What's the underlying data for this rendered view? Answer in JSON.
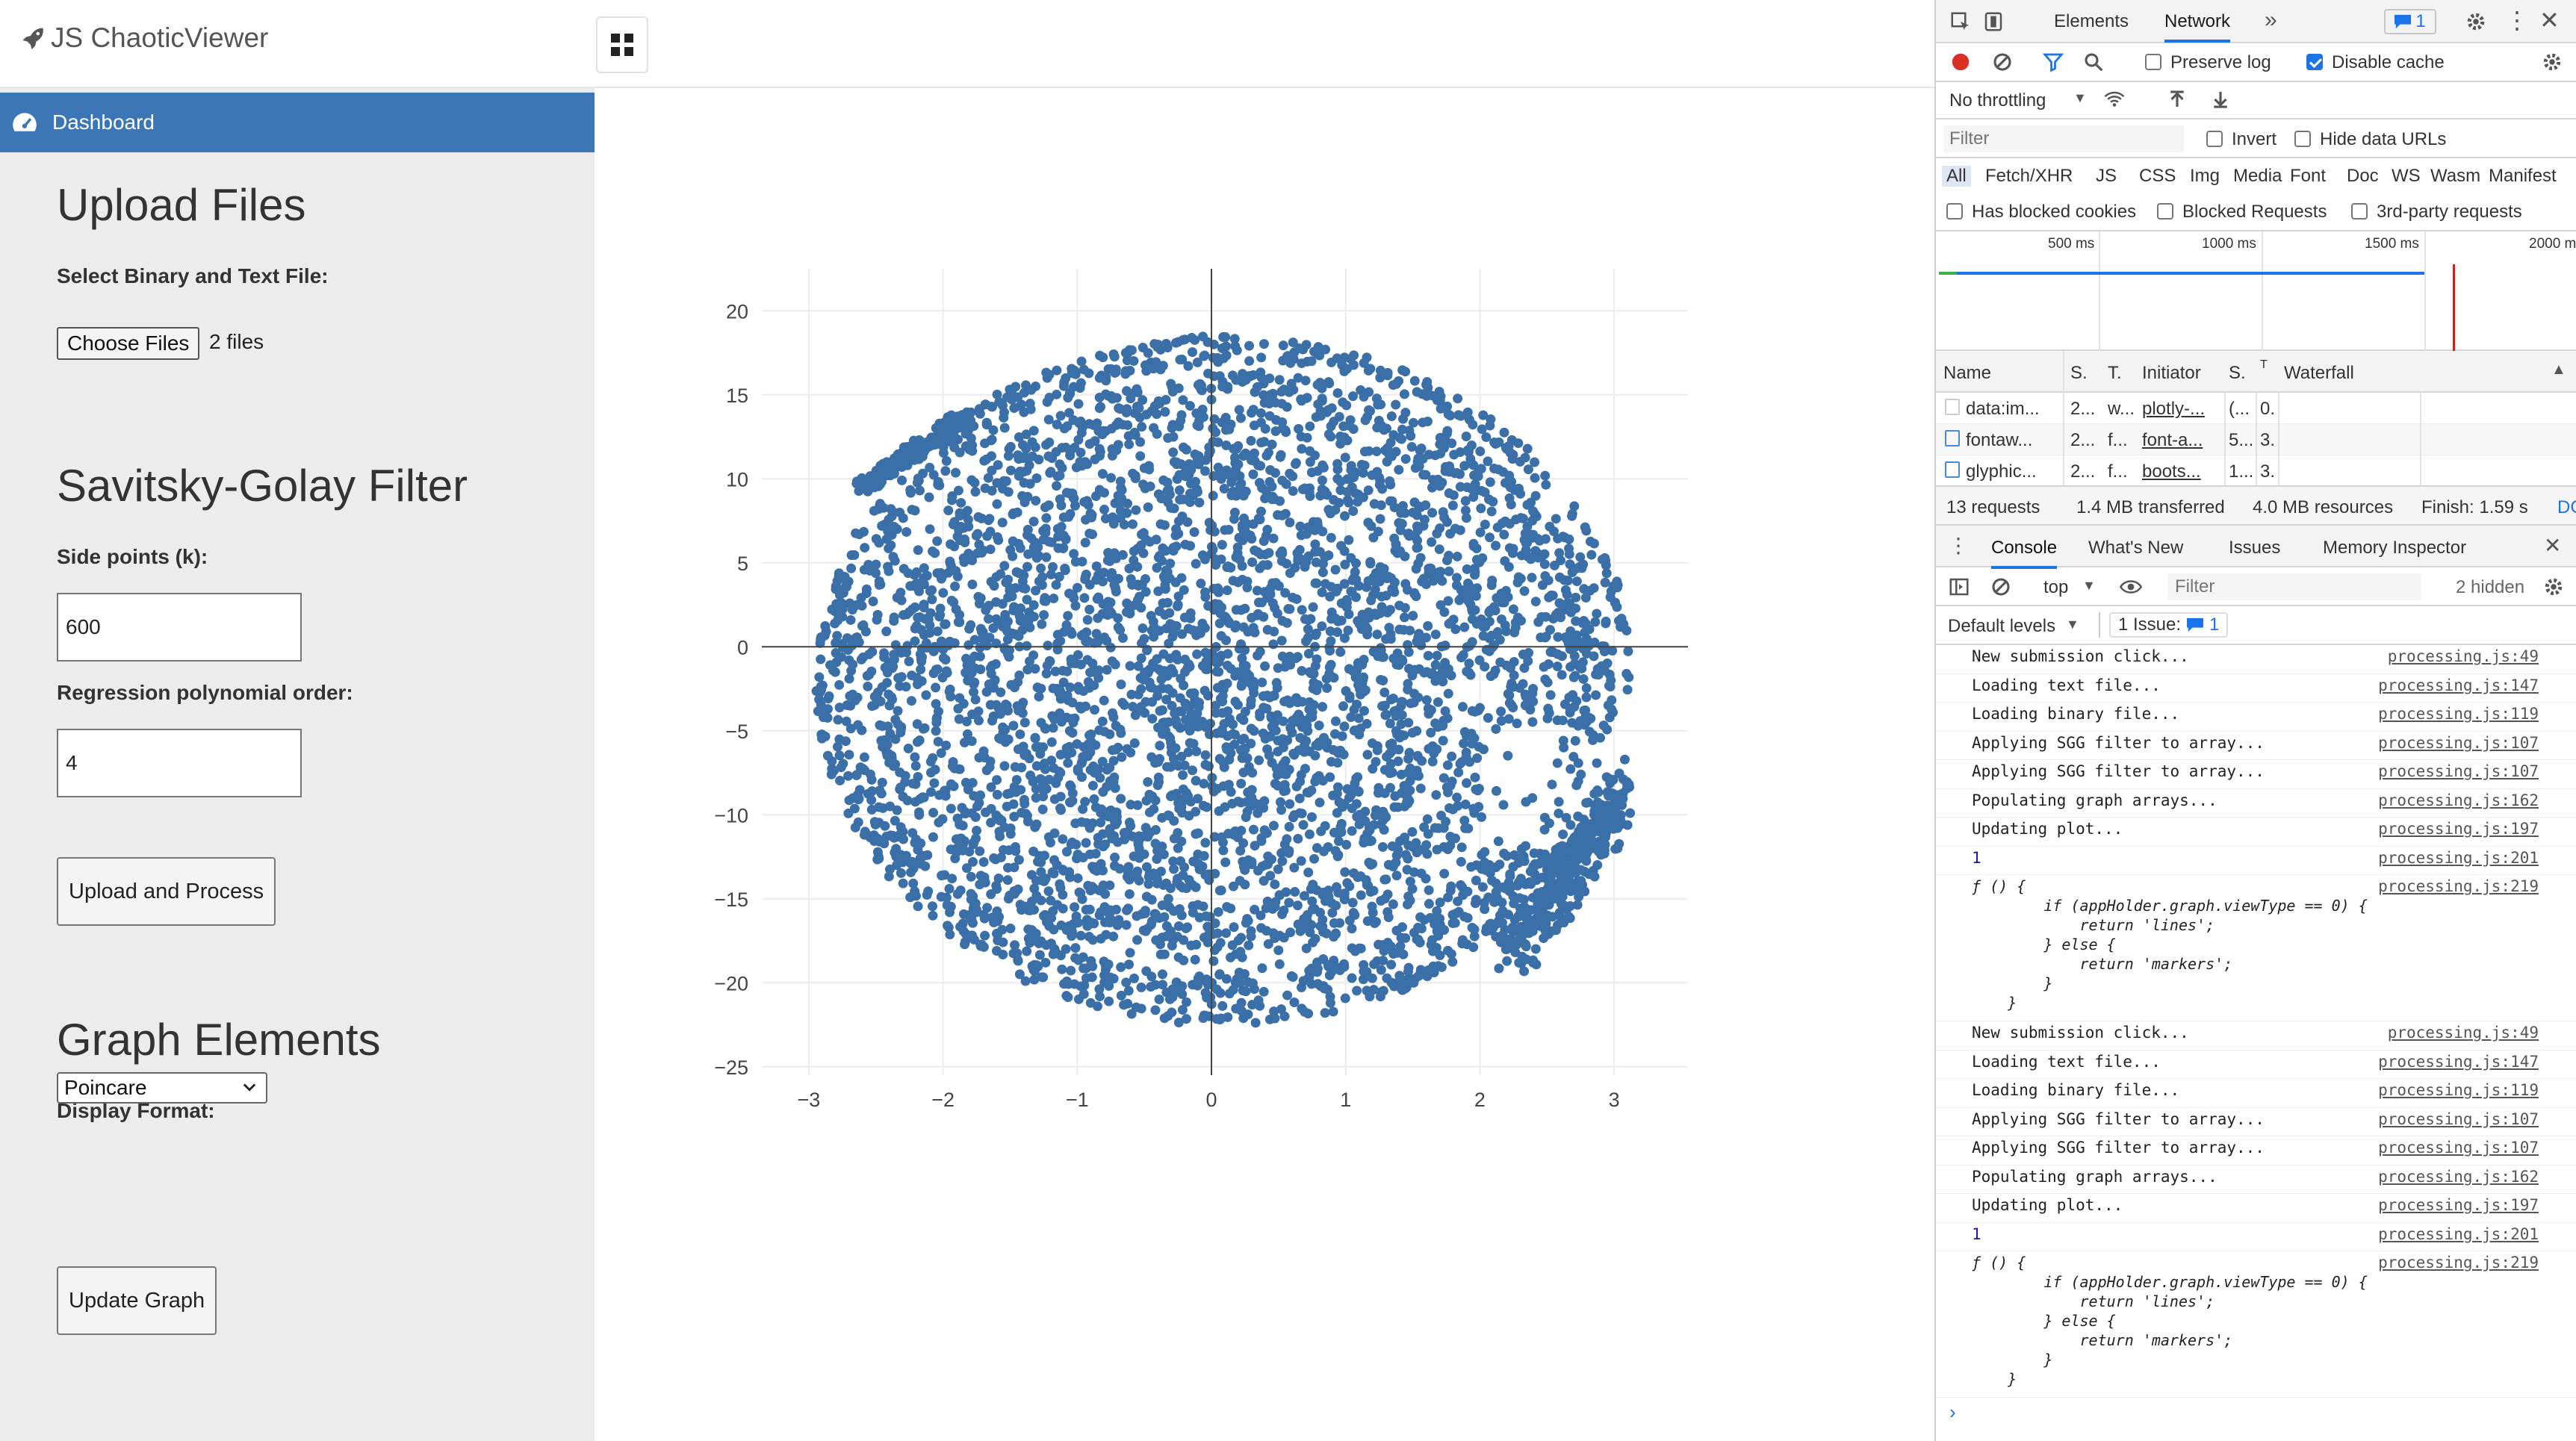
{
  "app": {
    "brand": "JS ChaoticViewer",
    "sidebar": {
      "dashboard_label": "Dashboard",
      "upload": {
        "heading": "Upload Files",
        "label": "Select Binary and Text File:",
        "choose_label": "Choose Files",
        "files_count": "2 files"
      },
      "filter": {
        "heading": "Savitsky-Golay Filter",
        "side_points_label": "Side points (k):",
        "side_points_value": "600",
        "order_label": "Regression polynomial order:",
        "order_value": "4",
        "upload_button": "Upload and Process"
      },
      "graph": {
        "heading": "Graph Elements",
        "format_label": "Display Format:",
        "format_value": "Poincare",
        "update_button": "Update Graph"
      }
    }
  },
  "chart_data": {
    "type": "scatter",
    "marker_color": "#3b6fa8",
    "xlim": [
      -3.35,
      3.55
    ],
    "ylim": [
      -25.5,
      22.5
    ],
    "x_ticks": [
      "−3",
      "−2",
      "−1",
      "0",
      "1",
      "2",
      "3"
    ],
    "x_tick_values": [
      -3,
      -2,
      -1,
      0,
      1,
      2,
      3
    ],
    "y_ticks": [
      "20",
      "15",
      "10",
      "5",
      "0",
      "−5",
      "−10",
      "−15",
      "−20",
      "−25"
    ],
    "y_tick_values": [
      20,
      15,
      10,
      5,
      0,
      -5,
      -10,
      -15,
      -20,
      -25
    ],
    "grid": true,
    "legend": "none",
    "points_description_values": {
      "x_range": [
        -3.1,
        3.1
      ],
      "y_range": [
        -23,
        20
      ]
    }
  },
  "devtools": {
    "tabs": [
      "Elements",
      "Network"
    ],
    "active_tab": "Network",
    "issues_badge": "1",
    "network": {
      "preserve_log": "Preserve log",
      "disable_cache": "Disable cache",
      "throttling": "No throttling",
      "filter_placeholder": "Filter",
      "invert": "Invert",
      "hide_data_urls": "Hide data URLs",
      "types": [
        "All",
        "Fetch/XHR",
        "JS",
        "CSS",
        "Img",
        "Media",
        "Font",
        "Doc",
        "WS",
        "Wasm",
        "Manifest"
      ],
      "has_blocked_cookies": "Has blocked cookies",
      "blocked_requests": "Blocked Requests",
      "third_party": "3rd-party requests",
      "timeline_ticks": [
        "500 ms",
        "1000 ms",
        "1500 ms",
        "2000 m"
      ],
      "columns": [
        "Name",
        "S.",
        "T.",
        "Initiator",
        "S.",
        "T",
        "Waterfall"
      ],
      "rows": [
        {
          "name": "data:im...",
          "status": "2...",
          "type": "w...",
          "initiator": "plotly-...",
          "size": "(...",
          "time": "0."
        },
        {
          "name": "fontaw...",
          "status": "2...",
          "type": "f...",
          "initiator": "font-a...",
          "size": "5...",
          "time": "3."
        },
        {
          "name": "glyphic...",
          "status": "2...",
          "type": "f...",
          "initiator": "boots...",
          "size": "1...",
          "time": "3."
        }
      ],
      "summary": [
        "13 requests",
        "1.4 MB transferred",
        "4.0 MB resources",
        "Finish: 1.59 s",
        "DC"
      ]
    },
    "drawer": {
      "tabs": [
        "Console",
        "What's New",
        "Issues",
        "Memory Inspector"
      ],
      "context": "top",
      "filter_placeholder": "Filter",
      "hidden": "2 hidden",
      "levels": "Default levels",
      "issue_label": "1 Issue:",
      "issue_count": "1",
      "fn_lines": [
        "ƒ () {",
        "        if (appHolder.graph.viewType == 0) {",
        "            return 'lines';",
        "        } else {",
        "            return 'markers';",
        "        }",
        "    }"
      ],
      "logs": [
        {
          "msg": "New submission click...",
          "src": "processing.js:49"
        },
        {
          "msg": "Loading text file...",
          "src": "processing.js:147"
        },
        {
          "msg": "Loading binary file...",
          "src": "processing.js:119"
        },
        {
          "msg": "Applying SGG filter to array...",
          "src": "processing.js:107"
        },
        {
          "msg": "Applying SGG filter to array...",
          "src": "processing.js:107"
        },
        {
          "msg": "Populating graph arrays...",
          "src": "processing.js:162"
        },
        {
          "msg": "Updating plot...",
          "src": "processing.js:197"
        },
        {
          "msg": "1",
          "src": "processing.js:201"
        },
        {
          "msg": "",
          "src": "processing.js:219"
        },
        {
          "msg": "New submission click...",
          "src": "processing.js:49"
        },
        {
          "msg": "Loading text file...",
          "src": "processing.js:147"
        },
        {
          "msg": "Loading binary file...",
          "src": "processing.js:119"
        },
        {
          "msg": "Applying SGG filter to array...",
          "src": "processing.js:107"
        },
        {
          "msg": "Applying SGG filter to array...",
          "src": "processing.js:107"
        },
        {
          "msg": "Populating graph arrays...",
          "src": "processing.js:162"
        },
        {
          "msg": "Updating plot...",
          "src": "processing.js:197"
        },
        {
          "msg": "1",
          "src": "processing.js:201"
        },
        {
          "msg": "",
          "src": "processing.js:219"
        }
      ],
      "prompt": "›"
    }
  }
}
